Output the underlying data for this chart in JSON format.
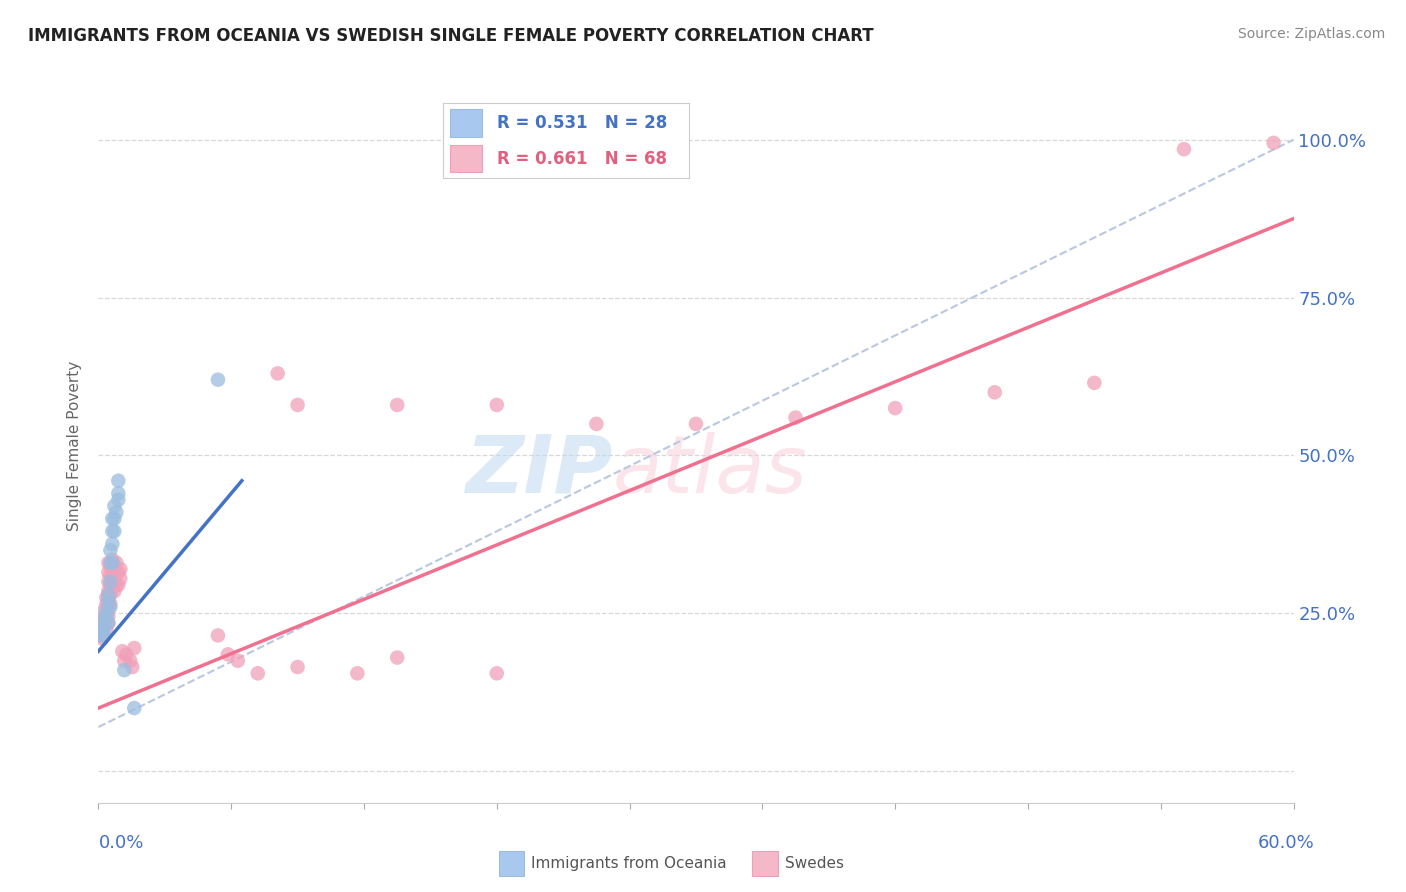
{
  "title": "IMMIGRANTS FROM OCEANIA VS SWEDISH SINGLE FEMALE POVERTY CORRELATION CHART",
  "source": "Source: ZipAtlas.com",
  "ylabel": "Single Female Poverty",
  "yticks": [
    0.0,
    0.25,
    0.5,
    0.75,
    1.0
  ],
  "ytick_labels": [
    "",
    "25.0%",
    "50.0%",
    "75.0%",
    "100.0%"
  ],
  "xlim": [
    0.0,
    0.6
  ],
  "ylim": [
    -0.05,
    1.08
  ],
  "legend_color1": "#a8c8f0",
  "legend_color2": "#f4b8c8",
  "watermark_zip": "ZIP",
  "watermark_atlas": "atlas",
  "blue_scatter": [
    [
      0.001,
      0.215
    ],
    [
      0.002,
      0.22
    ],
    [
      0.002,
      0.24
    ],
    [
      0.003,
      0.215
    ],
    [
      0.003,
      0.23
    ],
    [
      0.004,
      0.245
    ],
    [
      0.004,
      0.255
    ],
    [
      0.005,
      0.235
    ],
    [
      0.005,
      0.27
    ],
    [
      0.005,
      0.28
    ],
    [
      0.006,
      0.26
    ],
    [
      0.006,
      0.3
    ],
    [
      0.006,
      0.33
    ],
    [
      0.006,
      0.35
    ],
    [
      0.007,
      0.33
    ],
    [
      0.007,
      0.36
    ],
    [
      0.007,
      0.38
    ],
    [
      0.007,
      0.4
    ],
    [
      0.008,
      0.38
    ],
    [
      0.008,
      0.4
    ],
    [
      0.008,
      0.42
    ],
    [
      0.009,
      0.41
    ],
    [
      0.01,
      0.43
    ],
    [
      0.01,
      0.44
    ],
    [
      0.01,
      0.46
    ],
    [
      0.06,
      0.62
    ],
    [
      0.013,
      0.16
    ],
    [
      0.018,
      0.1
    ]
  ],
  "pink_scatter": [
    [
      0.001,
      0.215
    ],
    [
      0.001,
      0.235
    ],
    [
      0.002,
      0.21
    ],
    [
      0.002,
      0.22
    ],
    [
      0.002,
      0.24
    ],
    [
      0.003,
      0.215
    ],
    [
      0.003,
      0.23
    ],
    [
      0.003,
      0.245
    ],
    [
      0.003,
      0.255
    ],
    [
      0.004,
      0.225
    ],
    [
      0.004,
      0.235
    ],
    [
      0.004,
      0.245
    ],
    [
      0.004,
      0.265
    ],
    [
      0.004,
      0.275
    ],
    [
      0.005,
      0.235
    ],
    [
      0.005,
      0.245
    ],
    [
      0.005,
      0.255
    ],
    [
      0.005,
      0.265
    ],
    [
      0.005,
      0.275
    ],
    [
      0.005,
      0.285
    ],
    [
      0.005,
      0.3
    ],
    [
      0.005,
      0.315
    ],
    [
      0.005,
      0.33
    ],
    [
      0.006,
      0.265
    ],
    [
      0.006,
      0.28
    ],
    [
      0.006,
      0.295
    ],
    [
      0.006,
      0.31
    ],
    [
      0.006,
      0.325
    ],
    [
      0.007,
      0.29
    ],
    [
      0.007,
      0.305
    ],
    [
      0.007,
      0.32
    ],
    [
      0.007,
      0.335
    ],
    [
      0.008,
      0.285
    ],
    [
      0.008,
      0.3
    ],
    [
      0.008,
      0.315
    ],
    [
      0.009,
      0.295
    ],
    [
      0.009,
      0.315
    ],
    [
      0.009,
      0.33
    ],
    [
      0.01,
      0.295
    ],
    [
      0.01,
      0.315
    ],
    [
      0.011,
      0.305
    ],
    [
      0.011,
      0.32
    ],
    [
      0.012,
      0.19
    ],
    [
      0.013,
      0.175
    ],
    [
      0.014,
      0.185
    ],
    [
      0.016,
      0.175
    ],
    [
      0.017,
      0.165
    ],
    [
      0.018,
      0.195
    ],
    [
      0.06,
      0.215
    ],
    [
      0.065,
      0.185
    ],
    [
      0.07,
      0.175
    ],
    [
      0.08,
      0.155
    ],
    [
      0.1,
      0.165
    ],
    [
      0.13,
      0.155
    ],
    [
      0.15,
      0.18
    ],
    [
      0.2,
      0.155
    ],
    [
      0.09,
      0.63
    ],
    [
      0.1,
      0.58
    ],
    [
      0.15,
      0.58
    ],
    [
      0.2,
      0.58
    ],
    [
      0.25,
      0.55
    ],
    [
      0.3,
      0.55
    ],
    [
      0.35,
      0.56
    ],
    [
      0.4,
      0.575
    ],
    [
      0.45,
      0.6
    ],
    [
      0.5,
      0.615
    ],
    [
      0.545,
      0.985
    ],
    [
      0.59,
      0.995
    ]
  ],
  "blue_line_x": [
    0.0,
    0.072
  ],
  "blue_line_y": [
    0.19,
    0.46
  ],
  "pink_line_x": [
    0.0,
    0.6
  ],
  "pink_line_y": [
    0.1,
    0.875
  ],
  "dashed_line_x": [
    0.0,
    0.6
  ],
  "dashed_line_y": [
    0.07,
    1.0
  ],
  "blue_line_color": "#4472c4",
  "pink_line_color": "#f07090",
  "dashed_line_color": "#b8c8e0",
  "scatter_blue_color": "#9bbde0",
  "scatter_pink_color": "#f0a0b8",
  "grid_color": "#d8d8d8",
  "title_color": "#222222",
  "tick_label_color": "#4472c4"
}
